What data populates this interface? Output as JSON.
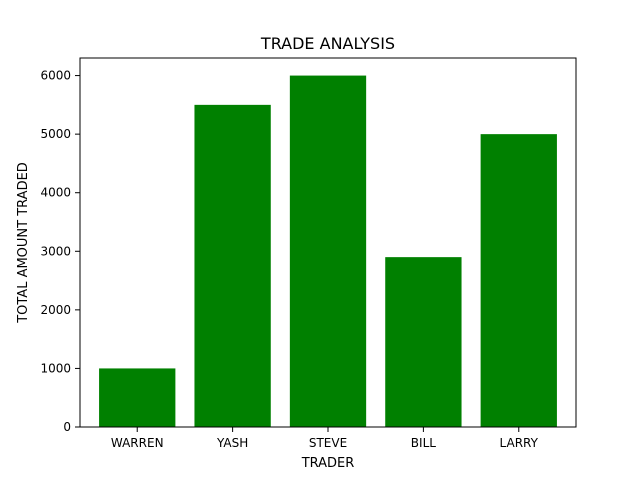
{
  "chart_data": {
    "type": "bar",
    "title": "TRADE ANALYSIS",
    "xlabel": "TRADER",
    "ylabel": "TOTAL AMOUNT TRADED",
    "categories": [
      "WARREN",
      "YASH",
      "STEVE",
      "BILL",
      "LARRY"
    ],
    "values": [
      1000,
      5500,
      6000,
      2900,
      5000
    ],
    "ylim": [
      0,
      6300
    ],
    "yticks": [
      0,
      1000,
      2000,
      3000,
      4000,
      5000,
      6000
    ],
    "bar_color": "#008000",
    "grid": false
  }
}
